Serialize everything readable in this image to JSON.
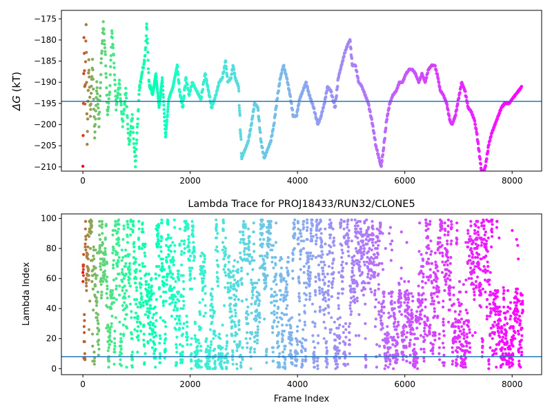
{
  "chart_data": [
    {
      "type": "scatter",
      "title": "",
      "xlabel": "",
      "ylabel": "ΔG (kT)",
      "ylabel_symbol": "ΔG",
      "ylabel_unit": "(kT)",
      "xlim": [
        -400,
        8550
      ],
      "ylim": [
        -211,
        -173
      ],
      "xticks": [
        0,
        2000,
        4000,
        6000,
        8000
      ],
      "xtick_labels": [
        "0",
        "2000",
        "4000",
        "6000",
        "8000"
      ],
      "yticks": [
        -175,
        -180,
        -185,
        -190,
        -195,
        -200,
        -205,
        -210
      ],
      "ytick_labels": [
        "−175",
        "−180",
        "−185",
        "−190",
        "−195",
        "−200",
        "−205",
        "−210"
      ],
      "hline": -194.5,
      "hline_color": "#1f77b4",
      "colormap": "rainbow (red → purple with frame index)",
      "grid": false,
      "x_range_points": [
        0,
        8200
      ],
      "keypoints": [
        [
          0,
          -210
        ],
        [
          20,
          -180
        ],
        [
          40,
          -195
        ],
        [
          60,
          -176
        ],
        [
          80,
          -205
        ],
        [
          110,
          -185
        ],
        [
          140,
          -198
        ],
        [
          180,
          -185
        ],
        [
          220,
          -203
        ],
        [
          260,
          -190
        ],
        [
          300,
          -200
        ],
        [
          340,
          -186
        ],
        [
          380,
          -176
        ],
        [
          420,
          -184
        ],
        [
          460,
          -198
        ],
        [
          500,
          -192
        ],
        [
          540,
          -178
        ],
        [
          580,
          -185
        ],
        [
          620,
          -196
        ],
        [
          680,
          -190
        ],
        [
          740,
          -200
        ],
        [
          800,
          -192
        ],
        [
          860,
          -205
        ],
        [
          920,
          -198
        ],
        [
          980,
          -210
        ],
        [
          1050,
          -192
        ],
        [
          1100,
          -188
        ],
        [
          1160,
          -184
        ],
        [
          1190,
          -176
        ],
        [
          1230,
          -190
        ],
        [
          1300,
          -193
        ],
        [
          1360,
          -188
        ],
        [
          1420,
          -196
        ],
        [
          1480,
          -189
        ],
        [
          1540,
          -203
        ],
        [
          1600,
          -194
        ],
        [
          1680,
          -191
        ],
        [
          1760,
          -186
        ],
        [
          1800,
          -192
        ],
        [
          1860,
          -196
        ],
        [
          1920,
          -189
        ],
        [
          1980,
          -193
        ],
        [
          2040,
          -190
        ],
        [
          2120,
          -192
        ],
        [
          2200,
          -194
        ],
        [
          2280,
          -188
        ],
        [
          2340,
          -192
        ],
        [
          2400,
          -196
        ],
        [
          2480,
          -193
        ],
        [
          2540,
          -190
        ],
        [
          2600,
          -189
        ],
        [
          2660,
          -185
        ],
        [
          2700,
          -190
        ],
        [
          2760,
          -189
        ],
        [
          2800,
          -186
        ],
        [
          2840,
          -189
        ],
        [
          2900,
          -191
        ],
        [
          2960,
          -208
        ],
        [
          3020,
          -206
        ],
        [
          3080,
          -204
        ],
        [
          3140,
          -200
        ],
        [
          3200,
          -195
        ],
        [
          3260,
          -196
        ],
        [
          3320,
          -204
        ],
        [
          3380,
          -208
        ],
        [
          3440,
          -206
        ],
        [
          3500,
          -204
        ],
        [
          3560,
          -200
        ],
        [
          3620,
          -194
        ],
        [
          3680,
          -189
        ],
        [
          3740,
          -186
        ],
        [
          3800,
          -189
        ],
        [
          3860,
          -193
        ],
        [
          3920,
          -198
        ],
        [
          3980,
          -198
        ],
        [
          4040,
          -194
        ],
        [
          4100,
          -192
        ],
        [
          4160,
          -190
        ],
        [
          4220,
          -193
        ],
        [
          4300,
          -196
        ],
        [
          4380,
          -200
        ],
        [
          4440,
          -198
        ],
        [
          4500,
          -195
        ],
        [
          4560,
          -191
        ],
        [
          4620,
          -192
        ],
        [
          4700,
          -196
        ],
        [
          4760,
          -189
        ],
        [
          4820,
          -186
        ],
        [
          4880,
          -183
        ],
        [
          4940,
          -181
        ],
        [
          4980,
          -180
        ],
        [
          5020,
          -186
        ],
        [
          5080,
          -186
        ],
        [
          5140,
          -190
        ],
        [
          5200,
          -191
        ],
        [
          5260,
          -193
        ],
        [
          5320,
          -195
        ],
        [
          5400,
          -200
        ],
        [
          5460,
          -205
        ],
        [
          5520,
          -208
        ],
        [
          5560,
          -210
        ],
        [
          5600,
          -206
        ],
        [
          5660,
          -199
        ],
        [
          5720,
          -195
        ],
        [
          5780,
          -193
        ],
        [
          5840,
          -192
        ],
        [
          5900,
          -190
        ],
        [
          5960,
          -190
        ],
        [
          6020,
          -188
        ],
        [
          6080,
          -187
        ],
        [
          6140,
          -187
        ],
        [
          6200,
          -188
        ],
        [
          6260,
          -190
        ],
        [
          6320,
          -188
        ],
        [
          6380,
          -190
        ],
        [
          6440,
          -187
        ],
        [
          6500,
          -186
        ],
        [
          6560,
          -186
        ],
        [
          6620,
          -189
        ],
        [
          6660,
          -192
        ],
        [
          6720,
          -193
        ],
        [
          6780,
          -195
        ],
        [
          6840,
          -199
        ],
        [
          6880,
          -200
        ],
        [
          6940,
          -198
        ],
        [
          7000,
          -194
        ],
        [
          7060,
          -190
        ],
        [
          7120,
          -192
        ],
        [
          7180,
          -196
        ],
        [
          7240,
          -197
        ],
        [
          7300,
          -199
        ],
        [
          7340,
          -202
        ],
        [
          7400,
          -208
        ],
        [
          7440,
          -212
        ],
        [
          7500,
          -210
        ],
        [
          7560,
          -205
        ],
        [
          7620,
          -202
        ],
        [
          7680,
          -200
        ],
        [
          7740,
          -198
        ],
        [
          7800,
          -196
        ],
        [
          7860,
          -195
        ],
        [
          7940,
          -195
        ],
        [
          8000,
          -194
        ],
        [
          8060,
          -193
        ],
        [
          8120,
          -192
        ],
        [
          8180,
          -191
        ]
      ]
    },
    {
      "type": "scatter",
      "title": "Lambda Trace for PROJ18433/RUN32/CLONE5",
      "xlabel": "Frame Index",
      "ylabel": "Lambda Index",
      "xlim": [
        -400,
        8550
      ],
      "ylim": [
        -4,
        103
      ],
      "xticks": [
        0,
        2000,
        4000,
        6000,
        8000
      ],
      "xtick_labels": [
        "0",
        "2000",
        "4000",
        "6000",
        "8000"
      ],
      "yticks": [
        0,
        20,
        40,
        60,
        80,
        100
      ],
      "ytick_labels": [
        "0",
        "20",
        "40",
        "60",
        "80",
        "100"
      ],
      "hline": 8,
      "hline_color": "#1f77b4",
      "colormap": "rainbow (red → purple with frame index)",
      "grid": false,
      "x_range_points": [
        0,
        8200
      ],
      "lambda_range": [
        0,
        99
      ],
      "n_points": 3600
    }
  ]
}
